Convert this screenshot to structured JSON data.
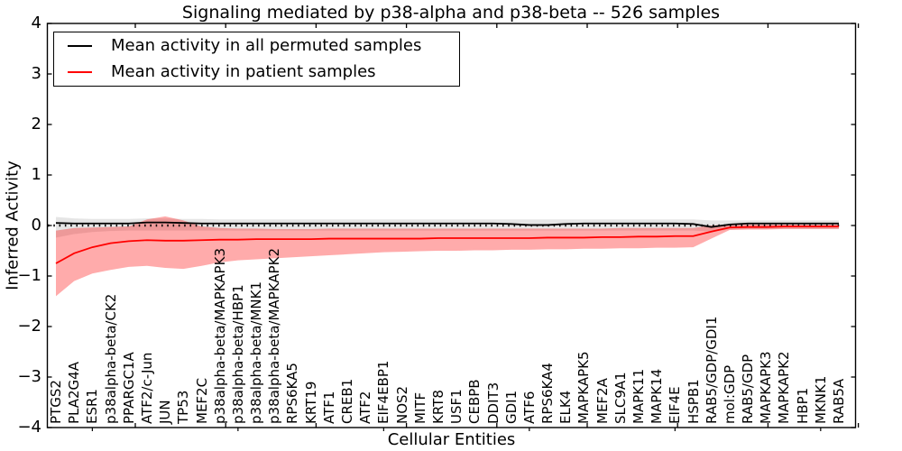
{
  "chart_data": {
    "type": "line",
    "title": "Signaling mediated by p38-alpha and p38-beta -- 526 samples",
    "xlabel": "Cellular Entities",
    "ylabel": "Inferred Activity",
    "ylim": [
      -4,
      4
    ],
    "ytick_labels": [
      "4",
      "3",
      "2",
      "1",
      "0",
      "−1",
      "−2",
      "−3",
      "−4"
    ],
    "grid": false,
    "legend_position": "upper-left",
    "zero_reference_line": true,
    "background_color": "#ffffff",
    "axis_color": "#000000",
    "categories": [
      "PTGS2",
      "PLA2G4A",
      "ESR1",
      "p38alpha-beta/CK2",
      "PPARGC1A",
      "ATF2/c-Jun",
      "JUN",
      "TP53",
      "MEF2C",
      "p38alpha-beta/MAPKAPK3",
      "p38alpha-beta/HBP1",
      "p38alpha-beta/MNK1",
      "p38alpha-beta/MAPKAPK2",
      "RPS6KA5",
      "KRT19",
      "ATF1",
      "CREB1",
      "ATF2",
      "EIF4EBP1",
      "NOS2",
      "MITF",
      "KRT8",
      "USF1",
      "CEBPB",
      "DDIT3",
      "GDI1",
      "ATF6",
      "RPS6KA4",
      "ELK4",
      "MAPKAPK5",
      "MEF2A",
      "SLC9A1",
      "MAPK11",
      "MAPK14",
      "EIF4E",
      "HSPB1",
      "RAB5/GDP/GDI1",
      "mol:GDP",
      "RAB5/GDP",
      "MAPKAPK3",
      "MAPKAPK2",
      "HBP1",
      "MKNK1",
      "RAB5A"
    ],
    "series": [
      {
        "name": "Mean activity in all permuted samples",
        "color": "#000000",
        "band_fill": "rgba(0,0,0,0.10)",
        "values": [
          0.05,
          0.04,
          0.04,
          0.04,
          0.04,
          0.06,
          0.06,
          0.05,
          0.04,
          0.04,
          0.04,
          0.04,
          0.04,
          0.04,
          0.04,
          0.04,
          0.04,
          0.04,
          0.04,
          0.04,
          0.04,
          0.04,
          0.04,
          0.04,
          0.04,
          0.03,
          0.01,
          0.01,
          0.03,
          0.04,
          0.04,
          0.04,
          0.04,
          0.04,
          0.04,
          0.03,
          -0.03,
          0.02,
          0.04,
          0.04,
          0.04,
          0.04,
          0.04,
          0.04
        ],
        "band_upper": [
          0.17,
          0.14,
          0.13,
          0.13,
          0.13,
          0.14,
          0.14,
          0.13,
          0.13,
          0.12,
          0.12,
          0.12,
          0.12,
          0.12,
          0.12,
          0.12,
          0.12,
          0.12,
          0.12,
          0.12,
          0.12,
          0.12,
          0.12,
          0.12,
          0.12,
          0.12,
          0.12,
          0.12,
          0.12,
          0.12,
          0.12,
          0.12,
          0.12,
          0.12,
          0.12,
          0.12,
          0.1,
          0.1,
          0.1,
          0.1,
          0.1,
          0.1,
          0.1,
          0.1
        ],
        "band_lower": [
          -0.24,
          -0.17,
          -0.13,
          -0.11,
          -0.1,
          -0.1,
          -0.1,
          -0.1,
          -0.1,
          -0.1,
          -0.1,
          -0.1,
          -0.1,
          -0.1,
          -0.1,
          -0.1,
          -0.1,
          -0.1,
          -0.1,
          -0.1,
          -0.1,
          -0.1,
          -0.1,
          -0.1,
          -0.1,
          -0.1,
          -0.1,
          -0.1,
          -0.1,
          -0.1,
          -0.1,
          -0.1,
          -0.1,
          -0.1,
          -0.1,
          -0.1,
          -0.12,
          -0.08,
          -0.07,
          -0.07,
          -0.07,
          -0.07,
          -0.07,
          -0.07
        ]
      },
      {
        "name": "Mean activity in patient samples",
        "color": "#ff0000",
        "band_fill": "rgba(255,0,0,0.33)",
        "values": [
          -0.75,
          -0.55,
          -0.43,
          -0.35,
          -0.31,
          -0.29,
          -0.3,
          -0.3,
          -0.29,
          -0.28,
          -0.28,
          -0.27,
          -0.27,
          -0.27,
          -0.27,
          -0.26,
          -0.26,
          -0.26,
          -0.26,
          -0.26,
          -0.26,
          -0.25,
          -0.25,
          -0.25,
          -0.25,
          -0.25,
          -0.25,
          -0.24,
          -0.24,
          -0.24,
          -0.23,
          -0.23,
          -0.22,
          -0.22,
          -0.21,
          -0.21,
          -0.12,
          -0.04,
          -0.03,
          -0.03,
          -0.02,
          -0.02,
          -0.02,
          -0.02
        ],
        "band_upper": [
          -0.1,
          -0.05,
          -0.04,
          -0.03,
          -0.02,
          0.12,
          0.18,
          0.1,
          -0.02,
          -0.05,
          -0.06,
          -0.06,
          -0.07,
          -0.07,
          -0.07,
          -0.06,
          -0.06,
          -0.06,
          -0.06,
          -0.06,
          -0.06,
          -0.06,
          -0.06,
          -0.06,
          -0.06,
          -0.06,
          -0.06,
          -0.06,
          -0.06,
          -0.06,
          -0.06,
          -0.05,
          -0.05,
          -0.05,
          -0.05,
          -0.05,
          0.0,
          0.02,
          0.02,
          0.02,
          0.02,
          0.02,
          0.02,
          0.02
        ],
        "band_lower": [
          -1.4,
          -1.1,
          -0.95,
          -0.88,
          -0.82,
          -0.8,
          -0.84,
          -0.86,
          -0.8,
          -0.73,
          -0.69,
          -0.67,
          -0.65,
          -0.63,
          -0.61,
          -0.59,
          -0.57,
          -0.55,
          -0.53,
          -0.52,
          -0.51,
          -0.5,
          -0.5,
          -0.49,
          -0.49,
          -0.48,
          -0.48,
          -0.47,
          -0.47,
          -0.46,
          -0.46,
          -0.45,
          -0.45,
          -0.44,
          -0.44,
          -0.43,
          -0.26,
          -0.09,
          -0.08,
          -0.08,
          -0.07,
          -0.07,
          -0.07,
          -0.07
        ]
      }
    ]
  }
}
